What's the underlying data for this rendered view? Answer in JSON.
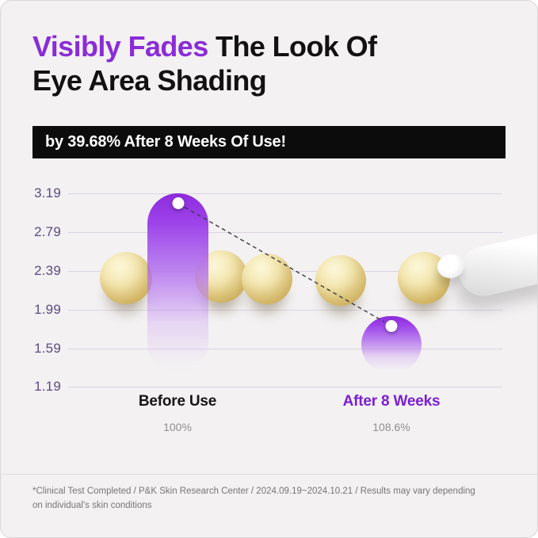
{
  "header": {
    "title_highlight": "Visibly Fades",
    "title_rest": " The Look Of",
    "title_line2": "Eye Area Shading",
    "banner": "by 39.68% After 8 Weeks Of Use!"
  },
  "chart_data": {
    "type": "bar",
    "title": "Visibly Fades The Look Of Eye Area Shading",
    "subtitle": "by 39.68% After 8 Weeks Of Use!",
    "categories": [
      "Before Use",
      "After 8 Weeks"
    ],
    "values": [
      3.19,
      1.92
    ],
    "sub_labels": [
      "100%",
      "108.6%"
    ],
    "yticks": [
      3.19,
      2.79,
      2.39,
      1.99,
      1.59,
      1.19
    ],
    "ylim": [
      1.19,
      3.19
    ],
    "grid": true,
    "legend": "none",
    "annotations": [
      "dashed trend line connecting Before Use (3.19) to After 8 Weeks (~1.92)"
    ]
  },
  "footer": {
    "note_line1": "*Clinical Test Completed / P&K Skin Research Center / 2024.09.19~2024.10.21 / Results may vary depending",
    "note_line2": "on individual's skin conditions"
  },
  "colors": {
    "background": "#f3f1f2",
    "accent_purple": "#8a2cd7",
    "bar_purple_top": "#8d2bdc",
    "banner_bg": "#0c0c0c",
    "ytick_purple": "#5d4a80",
    "after_label_purple": "#7b1fd2",
    "muted_gray": "#8f8f8f",
    "sphere_cream": "#f0e0a0"
  }
}
